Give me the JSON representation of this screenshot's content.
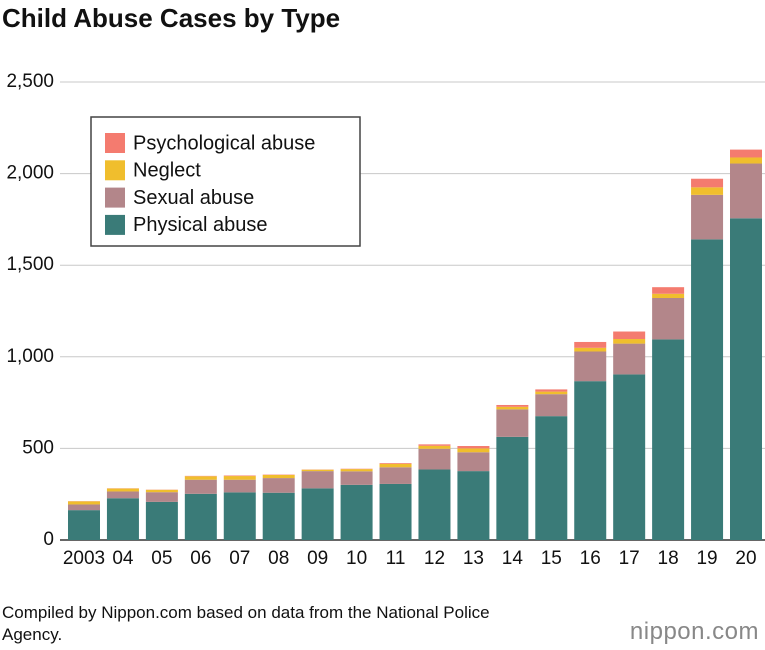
{
  "chart_data": {
    "type": "stacked-bar",
    "title": "Child Abuse Cases by Type",
    "categories": [
      "2003",
      "04",
      "05",
      "06",
      "07",
      "08",
      "09",
      "10",
      "11",
      "12",
      "13",
      "14",
      "15",
      "16",
      "17",
      "18",
      "19",
      "20"
    ],
    "series": [
      {
        "name": "Physical abuse",
        "color": "#3a7b78",
        "values": [
          163,
          228,
          208,
          252,
          260,
          258,
          282,
          301,
          306,
          385,
          376,
          563,
          676,
          867,
          904,
          1095,
          1641,
          1756
        ]
      },
      {
        "name": "Sexual abuse",
        "color": "#b3868a",
        "values": [
          31,
          37,
          53,
          77,
          69,
          80,
          94,
          74,
          91,
          113,
          103,
          150,
          120,
          162,
          168,
          226,
          243,
          299
        ]
      },
      {
        "name": "Neglect",
        "color": "#f0be2d",
        "values": [
          17,
          16,
          13,
          19,
          20,
          17,
          8,
          12,
          19,
          16,
          21,
          14,
          14,
          20,
          25,
          23,
          41,
          33
        ]
      },
      {
        "name": "Psychological abuse",
        "color": "#f47b6f",
        "values": [
          1,
          1,
          1,
          2,
          3,
          2,
          1,
          2,
          4,
          8,
          13,
          10,
          12,
          32,
          41,
          36,
          47,
          43
        ]
      }
    ],
    "ylim": [
      0,
      2500
    ],
    "yticks": [
      0,
      500,
      {
        "value": 1000,
        "label": "1,000"
      },
      {
        "value": 1500,
        "label": "1,500"
      },
      {
        "value": 2000,
        "label": "2,000"
      },
      {
        "value": 2500,
        "label": "2,500"
      }
    ],
    "grid": true,
    "legend": "upper-left",
    "source": "Compiled by Nippon.com based on data from the National Police Agency.",
    "logo": "nippon.com"
  }
}
